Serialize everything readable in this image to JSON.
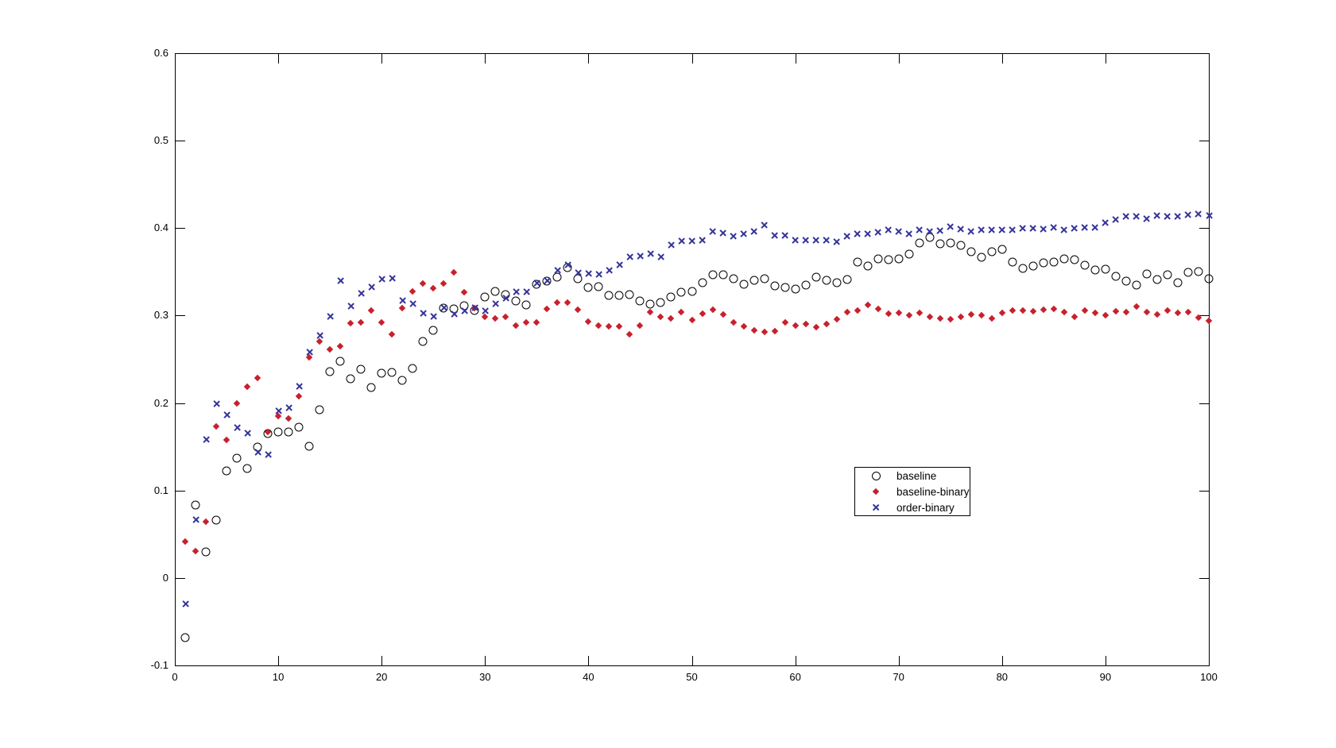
{
  "figure": {
    "background_color": "#ffffff",
    "axes_color": "#000000",
    "accent_colors": {
      "baseline": "#000000",
      "baseline_binary": "#c8202c",
      "order_binary": "#34349a"
    }
  },
  "chart_data": {
    "type": "scatter",
    "title": "",
    "xlabel": "",
    "ylabel": "",
    "xlim": [
      0,
      100
    ],
    "ylim": [
      -0.1,
      0.6
    ],
    "grid": false,
    "box": true,
    "xtick_labels": [
      "0",
      "10",
      "20",
      "30",
      "40",
      "50",
      "60",
      "70",
      "80",
      "90",
      "100"
    ],
    "ytick_labels": [
      "-0.1",
      "0",
      "0.1",
      "0.2",
      "0.3",
      "0.4",
      "0.5",
      "0.6"
    ],
    "legend": {
      "position": "inside-center-right",
      "entries": [
        "baseline",
        "baseline-binary",
        "order-binary"
      ]
    },
    "x": [
      1,
      2,
      3,
      4,
      5,
      6,
      7,
      8,
      9,
      10,
      11,
      12,
      13,
      14,
      15,
      16,
      17,
      18,
      19,
      20,
      21,
      22,
      23,
      24,
      25,
      26,
      27,
      28,
      29,
      30,
      31,
      32,
      33,
      34,
      35,
      36,
      37,
      38,
      39,
      40,
      41,
      42,
      43,
      44,
      45,
      46,
      47,
      48,
      49,
      50,
      51,
      52,
      53,
      54,
      55,
      56,
      57,
      58,
      59,
      60,
      61,
      62,
      63,
      64,
      65,
      66,
      67,
      68,
      69,
      70,
      71,
      72,
      73,
      74,
      75,
      76,
      77,
      78,
      79,
      80,
      81,
      82,
      83,
      84,
      85,
      86,
      87,
      88,
      89,
      90,
      91,
      92,
      93,
      94,
      95,
      96,
      97,
      98,
      99,
      100
    ],
    "series": [
      {
        "name": "baseline",
        "marker": "circle",
        "color": "#000000",
        "values": [
          -0.068,
          0.083,
          0.03,
          0.066,
          0.122,
          0.137,
          0.125,
          0.15,
          0.165,
          0.167,
          0.167,
          0.172,
          0.151,
          0.192,
          0.236,
          0.248,
          0.228,
          0.239,
          0.218,
          0.234,
          0.235,
          0.226,
          0.24,
          0.27,
          0.283,
          0.309,
          0.308,
          0.311,
          0.306,
          0.321,
          0.328,
          0.324,
          0.317,
          0.312,
          0.336,
          0.339,
          0.344,
          0.355,
          0.342,
          0.332,
          0.333,
          0.323,
          0.323,
          0.324,
          0.317,
          0.313,
          0.315,
          0.321,
          0.327,
          0.328,
          0.338,
          0.347,
          0.347,
          0.342,
          0.336,
          0.34,
          0.342,
          0.334,
          0.332,
          0.33,
          0.335,
          0.344,
          0.34,
          0.338,
          0.341,
          0.361,
          0.357,
          0.365,
          0.364,
          0.365,
          0.37,
          0.383,
          0.389,
          0.382,
          0.383,
          0.38,
          0.373,
          0.367,
          0.373,
          0.376,
          0.361,
          0.354,
          0.357,
          0.36,
          0.361,
          0.365,
          0.364,
          0.358,
          0.352,
          0.353,
          0.345,
          0.339,
          0.335,
          0.348,
          0.341,
          0.347,
          0.338,
          0.349,
          0.35,
          0.342
        ]
      },
      {
        "name": "baseline-binary",
        "marker": "diamond",
        "color": "#c8202c",
        "values": [
          0.042,
          0.031,
          0.064,
          0.173,
          0.158,
          0.2,
          0.219,
          0.229,
          0.167,
          0.185,
          0.182,
          0.208,
          0.252,
          0.27,
          0.261,
          0.265,
          0.291,
          0.292,
          0.306,
          0.292,
          0.279,
          0.309,
          0.328,
          0.337,
          0.331,
          0.337,
          0.349,
          0.327,
          0.309,
          0.299,
          0.297,
          0.299,
          0.289,
          0.292,
          0.292,
          0.308,
          0.315,
          0.315,
          0.307,
          0.293,
          0.289,
          0.288,
          0.288,
          0.279,
          0.289,
          0.304,
          0.299,
          0.297,
          0.304,
          0.295,
          0.302,
          0.307,
          0.301,
          0.292,
          0.288,
          0.283,
          0.281,
          0.282,
          0.292,
          0.289,
          0.29,
          0.287,
          0.29,
          0.296,
          0.304,
          0.306,
          0.312,
          0.308,
          0.302,
          0.303,
          0.3,
          0.303,
          0.299,
          0.297,
          0.296,
          0.299,
          0.301,
          0.3,
          0.297,
          0.303,
          0.306,
          0.306,
          0.305,
          0.307,
          0.308,
          0.304,
          0.299,
          0.306,
          0.303,
          0.3,
          0.305,
          0.304,
          0.31,
          0.304,
          0.301,
          0.306,
          0.303,
          0.304,
          0.298,
          0.294
        ]
      },
      {
        "name": "order-binary",
        "marker": "x",
        "color": "#34349a",
        "values": [
          -0.03,
          0.067,
          0.158,
          0.199,
          0.186,
          0.172,
          0.166,
          0.144,
          0.141,
          0.191,
          0.195,
          0.219,
          0.258,
          0.277,
          0.299,
          0.34,
          0.311,
          0.325,
          0.333,
          0.342,
          0.343,
          0.317,
          0.314,
          0.303,
          0.299,
          0.309,
          0.302,
          0.305,
          0.309,
          0.305,
          0.314,
          0.32,
          0.327,
          0.327,
          0.337,
          0.34,
          0.352,
          0.358,
          0.349,
          0.348,
          0.347,
          0.352,
          0.358,
          0.367,
          0.368,
          0.371,
          0.367,
          0.381,
          0.385,
          0.385,
          0.386,
          0.396,
          0.394,
          0.391,
          0.393,
          0.396,
          0.403,
          0.392,
          0.392,
          0.386,
          0.386,
          0.386,
          0.386,
          0.384,
          0.391,
          0.393,
          0.393,
          0.395,
          0.398,
          0.396,
          0.393,
          0.398,
          0.396,
          0.397,
          0.402,
          0.399,
          0.396,
          0.398,
          0.398,
          0.398,
          0.398,
          0.4,
          0.4,
          0.399,
          0.401,
          0.398,
          0.4,
          0.401,
          0.401,
          0.406,
          0.41,
          0.413,
          0.413,
          0.411,
          0.414,
          0.413,
          0.413,
          0.415,
          0.416,
          0.414
        ]
      }
    ]
  }
}
